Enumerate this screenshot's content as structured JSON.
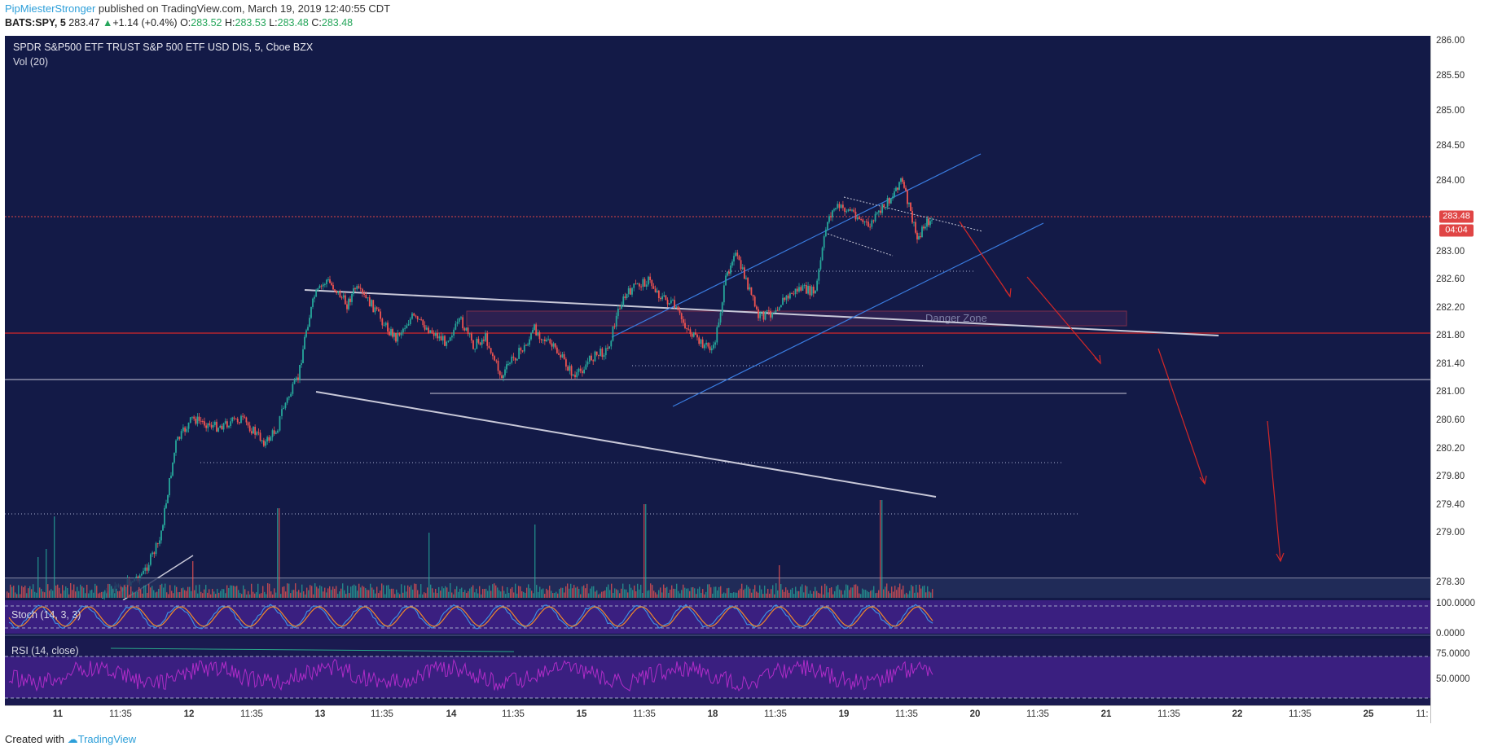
{
  "header": {
    "author": "PipMiesterStronger",
    "published": "published on TradingView.com, March 19, 2019 12:40:55 CDT",
    "symbol": "BATS:SPY, 5",
    "last": "283.47",
    "change": "+1.14 (+0.4%)",
    "o_label": "O:",
    "o_val": "283.52",
    "h_label": "H:",
    "h_val": "283.53",
    "l_label": "L:",
    "l_val": "283.48",
    "c_label": "C:",
    "c_val": "283.48"
  },
  "chart": {
    "title": "SPDR S&P500 ETF TRUST S&P 500 ETF USD DIS, 5, Cboe BZX",
    "volume_label": "Vol (20)",
    "annotation": "Danger Zone",
    "stoch_label": "Stoch (14, 3, 3)",
    "rsi_label": "RSI (14, close)",
    "price_tag": "283.48",
    "countdown_tag": "04:04"
  },
  "price_axis": [
    "286.00",
    "285.50",
    "285.00",
    "284.50",
    "284.00",
    "283.00",
    "282.60",
    "282.20",
    "281.80",
    "281.40",
    "281.00",
    "280.60",
    "280.20",
    "279.80",
    "279.40",
    "279.00",
    "278.30"
  ],
  "stoch_axis": [
    "100.0000",
    "0.0000"
  ],
  "rsi_axis": [
    "75.0000",
    "50.0000"
  ],
  "time_axis": [
    "11",
    "11:35",
    "12",
    "11:35",
    "13",
    "11:35",
    "14",
    "11:35",
    "15",
    "11:35",
    "18",
    "11:35",
    "19",
    "11:35",
    "20",
    "11:35",
    "21",
    "11:35",
    "22",
    "11:35",
    "25",
    "11:"
  ],
  "footer": {
    "created": "Created with",
    "brand": "TradingView"
  },
  "colors": {
    "background": "#131a47",
    "bull": "#26a69a",
    "bear": "#ef5350",
    "panel": "#3a1f80",
    "rsi_line": "#b02cc8",
    "resistance": "#e03030",
    "channel": "#3a7ce0"
  }
}
